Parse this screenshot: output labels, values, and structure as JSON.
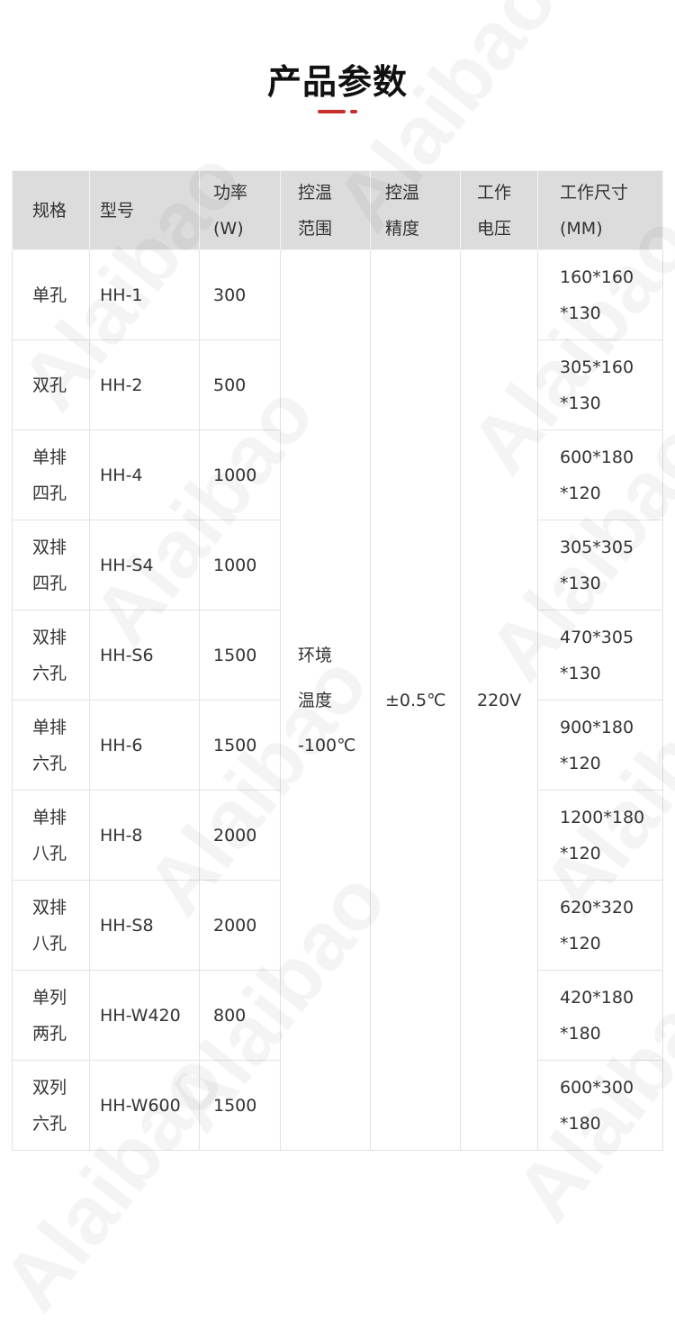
{
  "title": "产品参数",
  "watermark": "Alaibao",
  "accent_color": "#c9302c",
  "table": {
    "headers": [
      [
        "规格"
      ],
      [
        "型号"
      ],
      [
        "功率",
        "(W)"
      ],
      [
        "控温",
        "范围"
      ],
      [
        "控温",
        "精度"
      ],
      [
        "工作",
        "电压"
      ],
      [
        "工作尺寸",
        "(MM)"
      ]
    ],
    "merged": {
      "range": [
        "环境",
        "温度",
        "-100℃"
      ],
      "precision": "±0.5℃",
      "voltage": "220V"
    },
    "rows": [
      {
        "spec": [
          "单孔"
        ],
        "model": "HH-1",
        "power": "300",
        "size": [
          "160*160",
          "*130"
        ]
      },
      {
        "spec": [
          "双孔"
        ],
        "model": "HH-2",
        "power": "500",
        "size": [
          "305*160",
          "*130"
        ]
      },
      {
        "spec": [
          "单排",
          "四孔"
        ],
        "model": "HH-4",
        "power": "1000",
        "size": [
          "600*180",
          "*120"
        ]
      },
      {
        "spec": [
          "双排",
          "四孔"
        ],
        "model": "HH-S4",
        "power": "1000",
        "size": [
          "305*305",
          "*130"
        ]
      },
      {
        "spec": [
          "双排",
          "六孔"
        ],
        "model": "HH-S6",
        "power": "1500",
        "size": [
          "470*305",
          "*130"
        ]
      },
      {
        "spec": [
          "单排",
          "六孔"
        ],
        "model": "HH-6",
        "power": "1500",
        "size": [
          "900*180",
          "*120"
        ]
      },
      {
        "spec": [
          "单排",
          "八孔"
        ],
        "model": "HH-8",
        "power": "2000",
        "size": [
          "1200*180",
          "*120"
        ]
      },
      {
        "spec": [
          "双排",
          "八孔"
        ],
        "model": "HH-S8",
        "power": "2000",
        "size": [
          "620*320",
          "*120"
        ]
      },
      {
        "spec": [
          "单列",
          "两孔"
        ],
        "model": "HH-W420",
        "power": "800",
        "size": [
          "420*180",
          "*180"
        ]
      },
      {
        "spec": [
          "双列",
          "六孔"
        ],
        "model": "HH-W600",
        "power": "1500",
        "size": [
          "600*300",
          "*180"
        ]
      }
    ]
  }
}
